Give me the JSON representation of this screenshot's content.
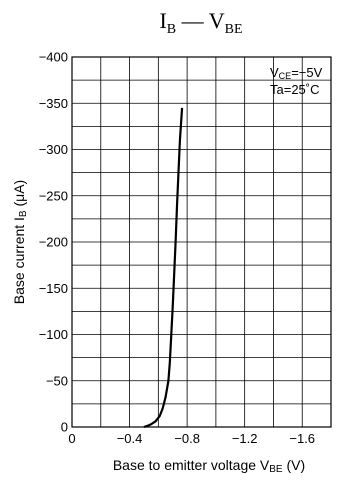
{
  "chart_data": {
    "type": "line",
    "title": {
      "main": "I",
      "main_sub": "B",
      "sep": " — ",
      "right": "V",
      "right_sub": "BE"
    },
    "xlabel": {
      "text": "Base to emitter voltage  V",
      "sub": "BE",
      "unit": "  (V)"
    },
    "ylabel": {
      "text": "Base current  I",
      "sub": "B",
      "unit": "  (μA)"
    },
    "xlim": [
      0,
      -1.8
    ],
    "ylim": [
      0,
      -400
    ],
    "xticks": [
      0,
      -0.4,
      -0.8,
      -1.2,
      -1.6
    ],
    "xtick_labels": [
      "0",
      "−0.4",
      "−0.8",
      "−1.2",
      "−1.6"
    ],
    "yticks": [
      0,
      -50,
      -100,
      -150,
      -200,
      -250,
      -300,
      -350,
      -400
    ],
    "ytick_labels": [
      "0",
      "−50",
      "−100",
      "−150",
      "−200",
      "−250",
      "−300",
      "−350",
      "−400"
    ],
    "grid": true,
    "grid_minor_x_step": -0.2,
    "grid_minor_y_step": -25,
    "annotations": [
      {
        "text": "V",
        "sub": "CE",
        "rest": "=−5V"
      },
      {
        "text": "Ta=25˚C"
      }
    ],
    "series": [
      {
        "x": [
          -0.5,
          -0.52,
          -0.55,
          -0.58,
          -0.61,
          -0.63,
          -0.65,
          -0.67,
          -0.68,
          -0.69,
          -0.7,
          -0.71,
          -0.72,
          -0.73,
          -0.74,
          -0.75,
          -0.765
        ],
        "y": [
          0,
          -1,
          -3,
          -6,
          -12,
          -20,
          -32,
          -50,
          -70,
          -100,
          -130,
          -165,
          -200,
          -240,
          -275,
          -310,
          -345
        ]
      }
    ]
  }
}
